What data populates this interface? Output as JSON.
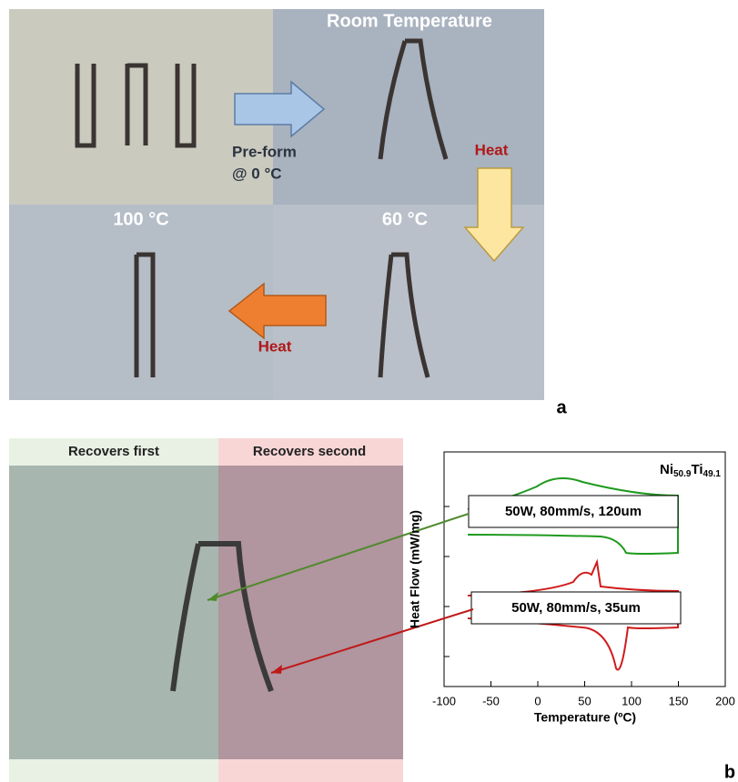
{
  "panel_a": {
    "labels": {
      "room_temperature": "Room Temperature",
      "preform_line1": "Pre-form",
      "preform_line2": "@ 0 °C",
      "heat_top": "Heat",
      "t100": "100 °C",
      "t60": "60 °C",
      "heat_bottom": "Heat"
    },
    "panel_label": "a"
  },
  "panel_b": {
    "left_strip": "Recovers first",
    "right_strip": "Recovers second",
    "panel_label": "b",
    "chart": {
      "type": "line",
      "title": {
        "base1": "Ni",
        "sub1": "50.9",
        "base2": "Ti",
        "sub2": "49.1"
      },
      "x_label": "Temperature (ºC)",
      "y_label": "Heat Flow (mW/mg)",
      "xlim": [
        -100,
        200
      ],
      "xticks": [
        -100,
        -50,
        0,
        50,
        100,
        150,
        200
      ],
      "annotations": [
        "50W, 80mm/s, 120um",
        "50W, 80mm/s, 35um"
      ]
    }
  }
}
